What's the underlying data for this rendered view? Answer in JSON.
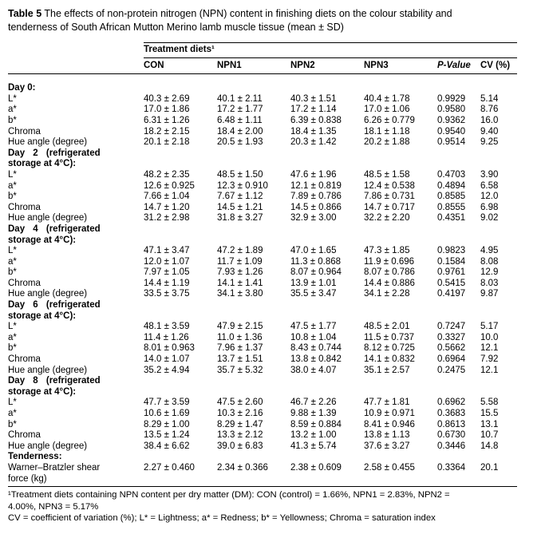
{
  "caption": {
    "label": "Table 5",
    "text": " The effects of non-protein nitrogen (NPN) content in finishing diets on the colour stability and\ntenderness of South African Mutton Merino lamb muscle tissue (mean ± SD)"
  },
  "table": {
    "group_header": "Treatment diets¹",
    "columns": [
      "CON",
      "NPN1",
      "NPN2",
      "NPN3",
      "P-Value",
      "CV (%)"
    ],
    "sections": [
      {
        "header_lines": [
          "Day 0:"
        ],
        "rows": [
          {
            "label": "L*",
            "values": [
              "40.3 ± 2.69",
              "40.1 ± 2.11",
              "40.3 ± 1.51",
              "40.4 ± 1.78",
              "0.9929",
              "5.14"
            ]
          },
          {
            "label": "a*",
            "values": [
              "17.0 ± 1.86",
              "17.2 ± 1.77",
              "17.2 ± 1.14",
              "17.0 ± 1.06",
              "0.9580",
              "8.76"
            ]
          },
          {
            "label": "b*",
            "values": [
              "6.31 ± 1.26",
              "6.48 ± 1.11",
              "6.39 ± 0.838",
              "6.26 ± 0.779",
              "0.9362",
              "16.0"
            ]
          },
          {
            "label": "Chroma",
            "values": [
              "18.2 ± 2.15",
              "18.4 ± 2.00",
              "18.4 ± 1.35",
              "18.1 ± 1.18",
              "0.9540",
              "9.40"
            ]
          },
          {
            "label": "Hue angle (degree)",
            "values": [
              "20.1 ± 2.18",
              "20.5 ± 1.93",
              "20.3 ± 1.42",
              "20.2 ± 1.88",
              "0.9514",
              "9.25"
            ]
          }
        ]
      },
      {
        "header_lines": [
          "Day 2 (refrigerated",
          "storage at 4°C):"
        ],
        "rows": [
          {
            "label": "L*",
            "values": [
              "48.2 ± 2.35",
              "48.5 ± 1.50",
              "47.6 ± 1.96",
              "48.5 ± 1.58",
              "0.4703",
              "3.90"
            ]
          },
          {
            "label": "a*",
            "values": [
              "12.6 ± 0.925",
              "12.3 ± 0.910",
              "12.1 ± 0.819",
              "12.4 ± 0.538",
              "0.4894",
              "6.58"
            ]
          },
          {
            "label": "b*",
            "values": [
              "7.66 ± 1.04",
              "7.67 ± 1.12",
              "7.89 ± 0.786",
              "7.86 ± 0.731",
              "0.8585",
              "12.0"
            ]
          },
          {
            "label": "Chroma",
            "values": [
              "14.7 ± 1.20",
              "14.5 ± 1.21",
              "14.5 ± 0.866",
              "14.7 ± 0.717",
              "0.8555",
              "6.98"
            ]
          },
          {
            "label": "Hue angle (degree)",
            "values": [
              "31.2 ± 2.98",
              "31.8 ± 3.27",
              "32.9 ± 3.00",
              "32.2 ± 2.20",
              "0.4351",
              "9.02"
            ]
          }
        ]
      },
      {
        "header_lines": [
          "Day 4 (refrigerated",
          "storage at 4°C):"
        ],
        "rows": [
          {
            "label": "L*",
            "values": [
              "47.1 ± 3.47",
              "47.2 ± 1.89",
              "47.0 ± 1.65",
              "47.3 ± 1.85",
              "0.9823",
              "4.95"
            ]
          },
          {
            "label": "a*",
            "values": [
              "12.0 ± 1.07",
              "11.7 ± 1.09",
              "11.3 ± 0.868",
              "11.9 ± 0.696",
              "0.1584",
              "8.08"
            ]
          },
          {
            "label": "b*",
            "values": [
              "7.97 ± 1.05",
              "7.93 ± 1.26",
              "8.07 ± 0.964",
              "8.07 ± 0.786",
              "0.9761",
              "12.9"
            ]
          },
          {
            "label": "Chroma",
            "values": [
              "14.4 ± 1.19",
              "14.1 ± 1.41",
              "13.9 ± 1.01",
              "14.4 ± 0.886",
              "0.5415",
              "8.03"
            ]
          },
          {
            "label": "Hue angle (degree)",
            "values": [
              "33.5 ± 3.75",
              "34.1 ± 3.80",
              "35.5 ± 3.47",
              "34.1 ± 2.28",
              "0.4197",
              "9.87"
            ]
          }
        ]
      },
      {
        "header_lines": [
          "Day 6 (refrigerated",
          "storage at 4°C):"
        ],
        "rows": [
          {
            "label": "L*",
            "values": [
              "48.1 ± 3.59",
              "47.9 ± 2.15",
              "47.5 ± 1.77",
              "48.5 ± 2.01",
              "0.7247",
              "5.17"
            ]
          },
          {
            "label": "a*",
            "values": [
              "11.4 ± 1.26",
              "11.0 ± 1.36",
              "10.8 ± 1.04",
              "11.5 ± 0.737",
              "0.3327",
              "10.0"
            ]
          },
          {
            "label": "b*",
            "values": [
              "8.01 ± 0.963",
              "7.96 ± 1.37",
              "8.43 ± 0.744",
              "8.12 ± 0.725",
              "0.5662",
              "12.1"
            ]
          },
          {
            "label": "Chroma",
            "values": [
              "14.0 ± 1.07",
              "13.7 ± 1.51",
              "13.8 ± 0.842",
              "14.1 ± 0.832",
              "0.6964",
              "7.92"
            ]
          },
          {
            "label": "Hue angle (degree)",
            "values": [
              "35.2 ± 4.94",
              "35.7 ± 5.32",
              "38.0 ± 4.07",
              "35.1 ± 2.57",
              "0.2475",
              "12.1"
            ]
          }
        ]
      },
      {
        "header_lines": [
          "Day 8 (refrigerated",
          "storage at 4°C):"
        ],
        "rows": [
          {
            "label": "L*",
            "values": [
              "47.7 ± 3.59",
              "47.5 ± 2.60",
              "46.7 ± 2.26",
              "47.7 ± 1.81",
              "0.6962",
              "5.58"
            ]
          },
          {
            "label": "a*",
            "values": [
              "10.6 ± 1.69",
              "10.3 ± 2.16",
              "9.88 ± 1.39",
              "10.9 ± 0.971",
              "0.3683",
              "15.5"
            ]
          },
          {
            "label": "b*",
            "values": [
              "8.29 ± 1.00",
              "8.29 ± 1.47",
              "8.59 ± 0.884",
              "8.41 ± 0.946",
              "0.8613",
              "13.1"
            ]
          },
          {
            "label": "Chroma",
            "values": [
              "13.5 ± 1.24",
              "13.3 ± 2.12",
              "13.2 ± 1.00",
              "13.8 ± 1.13",
              "0.6730",
              "10.7"
            ]
          },
          {
            "label": "Hue angle (degree)",
            "values": [
              "38.4 ± 6.62",
              "39.0 ± 6.83",
              "41.3 ± 5.74",
              "37.6 ± 3.27",
              "0.3446",
              "14.8"
            ]
          }
        ]
      },
      {
        "header_lines": [
          "Tenderness:"
        ],
        "rows": [
          {
            "label": "Warner–Bratzler shear\nforce (kg)",
            "values": [
              "2.27 ± 0.460",
              "2.34 ± 0.366",
              "2.38 ± 0.609",
              "2.58 ± 0.455",
              "0.3364",
              "20.1"
            ]
          }
        ]
      }
    ]
  },
  "footnotes": [
    "¹Treatment diets containing NPN content per dry matter (DM): CON (control) = 1.66%, NPN1 = 2.83%, NPN2 =\n4.00%, NPN3 = 5.17%",
    "CV = coefficient of variation (%); L* = Lightness; a* = Redness; b* = Yellowness; Chroma = saturation index"
  ]
}
